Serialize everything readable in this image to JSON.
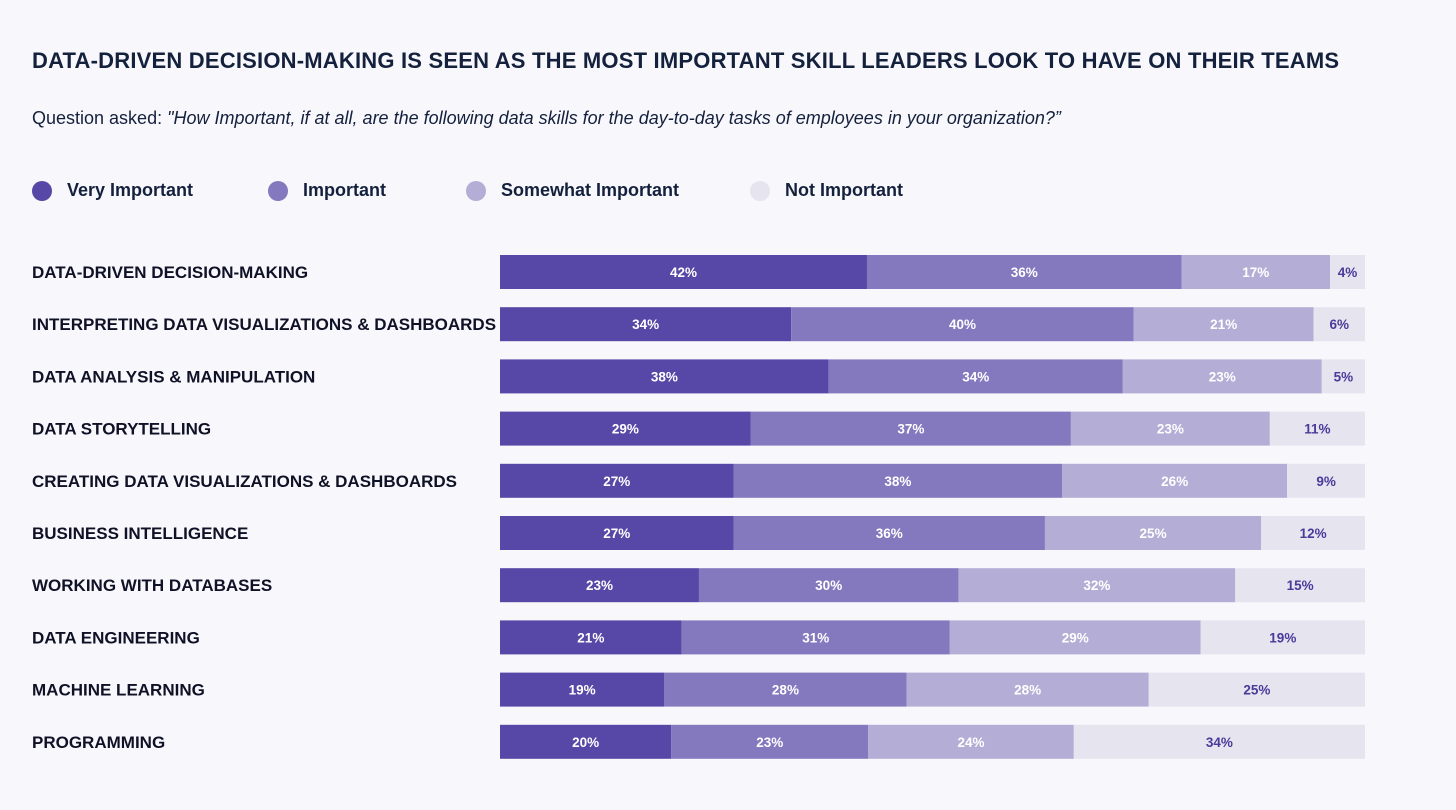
{
  "chart_data": {
    "type": "bar",
    "orientation": "horizontal",
    "stacked": true,
    "title": "DATA-DRIVEN DECISION-MAKING IS SEEN AS THE MOST IMPORTANT SKILL LEADERS LOOK TO HAVE ON THEIR TEAMS",
    "subtitle_prefix": "Question asked: ",
    "subtitle_question": "\"How Important, if at all, are the following data skills for the day-to-day tasks of employees in your organization?”",
    "categories": [
      "DATA-DRIVEN DECISION-MAKING",
      "INTERPRETING DATA VISUALIZATIONS & DASHBOARDS",
      "DATA ANALYSIS & MANIPULATION",
      "DATA STORYTELLING",
      "CREATING DATA VISUALIZATIONS & DASHBOARDS",
      "BUSINESS INTELLIGENCE",
      "WORKING WITH DATABASES",
      "DATA ENGINEERING",
      "MACHINE LEARNING",
      "PROGRAMMING"
    ],
    "series": [
      {
        "name": "Very Important",
        "color": "#5747a6",
        "label_color": "#ffffff",
        "values": [
          42,
          34,
          38,
          29,
          27,
          27,
          23,
          21,
          19,
          20
        ]
      },
      {
        "name": "Important",
        "color": "#8479be",
        "label_color": "#ffffff",
        "values": [
          36,
          40,
          34,
          37,
          38,
          36,
          30,
          31,
          28,
          23
        ]
      },
      {
        "name": "Somewhat Important",
        "color": "#b4aed6",
        "label_color": "#ffffff",
        "values": [
          17,
          21,
          23,
          23,
          26,
          25,
          32,
          29,
          28,
          24
        ]
      },
      {
        "name": "Not Important",
        "color": "#e6e4ef",
        "label_color": "#4a3a9a",
        "values": [
          4,
          6,
          5,
          11,
          9,
          12,
          15,
          19,
          25,
          34
        ]
      }
    ],
    "value_suffix": "%",
    "legend_position": "top-left"
  }
}
